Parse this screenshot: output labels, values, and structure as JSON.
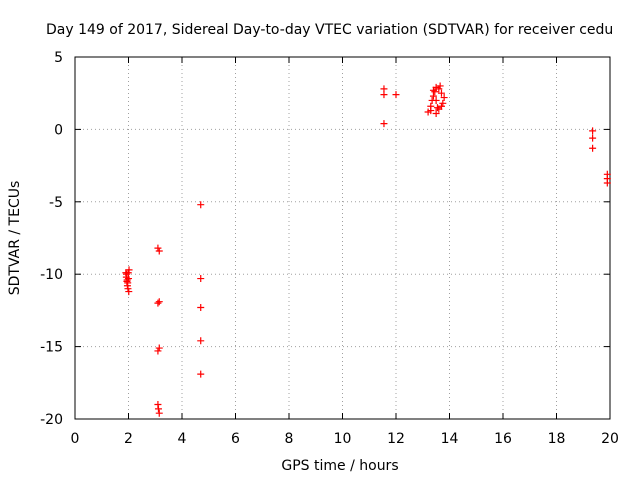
{
  "chart_data": {
    "type": "scatter",
    "title": "Day 149 of 2017, Sidereal Day-to-day VTEC variation (SDTVAR) for receiver cedu",
    "xlabel": "GPS time / hours",
    "ylabel": "SDTVAR / TECUs",
    "xlim": [
      0,
      20
    ],
    "ylim": [
      -20,
      5
    ],
    "xticks": [
      0,
      2,
      4,
      6,
      8,
      10,
      12,
      14,
      16,
      18,
      20
    ],
    "yticks": [
      5,
      0,
      -5,
      -10,
      -15,
      -20
    ],
    "grid": true,
    "marker": "+",
    "color": "#ff0000",
    "series": [
      {
        "name": "SDTVAR",
        "points": [
          [
            1.9,
            -9.9
          ],
          [
            1.92,
            -10.2
          ],
          [
            1.94,
            -10.5
          ],
          [
            1.96,
            -10.8
          ],
          [
            1.98,
            -11.0
          ],
          [
            2.0,
            -10.3
          ],
          [
            2.02,
            -9.7
          ],
          [
            1.93,
            -10.0
          ],
          [
            1.97,
            -10.6
          ],
          [
            2.01,
            -11.2
          ],
          [
            1.95,
            -10.4
          ],
          [
            1.99,
            -9.9
          ],
          [
            3.1,
            -8.2
          ],
          [
            3.15,
            -8.4
          ],
          [
            3.1,
            -12.0
          ],
          [
            3.15,
            -11.9
          ],
          [
            3.1,
            -15.3
          ],
          [
            3.15,
            -15.1
          ],
          [
            3.1,
            -19.0
          ],
          [
            3.12,
            -19.3
          ],
          [
            3.15,
            -19.6
          ],
          [
            4.7,
            -5.2
          ],
          [
            4.7,
            -10.3
          ],
          [
            4.7,
            -12.3
          ],
          [
            4.7,
            -14.6
          ],
          [
            4.7,
            -16.9
          ],
          [
            11.55,
            0.4
          ],
          [
            11.55,
            2.4
          ],
          [
            11.55,
            2.8
          ],
          [
            12.0,
            2.4
          ],
          [
            13.2,
            1.2
          ],
          [
            13.3,
            1.6
          ],
          [
            13.35,
            2.0
          ],
          [
            13.4,
            2.3
          ],
          [
            13.45,
            2.6
          ],
          [
            13.5,
            2.0
          ],
          [
            13.55,
            1.5
          ],
          [
            13.6,
            2.8
          ],
          [
            13.65,
            3.0
          ],
          [
            13.7,
            2.5
          ],
          [
            13.75,
            1.8
          ],
          [
            13.8,
            2.2
          ],
          [
            13.3,
            1.3
          ],
          [
            13.5,
            1.1
          ],
          [
            13.6,
            1.4
          ],
          [
            13.7,
            1.6
          ],
          [
            13.4,
            2.7
          ],
          [
            13.5,
            2.9
          ],
          [
            19.35,
            -0.1
          ],
          [
            19.35,
            -0.6
          ],
          [
            19.35,
            -1.3
          ],
          [
            19.9,
            -3.1
          ],
          [
            19.9,
            -3.4
          ],
          [
            19.9,
            -3.7
          ]
        ]
      }
    ]
  }
}
